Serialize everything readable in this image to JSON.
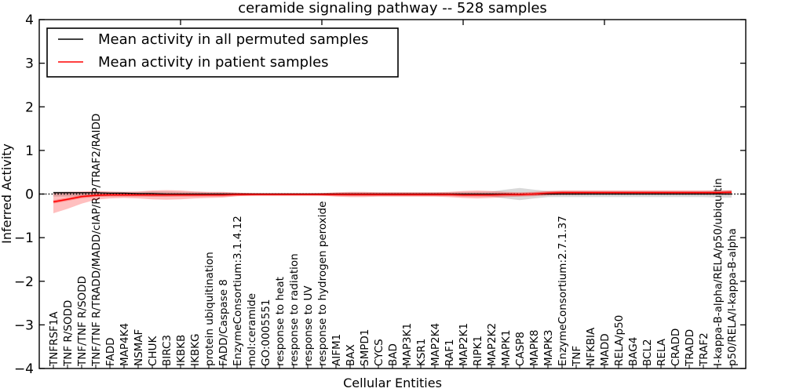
{
  "title": "ceramide signaling pathway -- 528 samples",
  "colors": {
    "permuted_line": "#000000",
    "patient_line": "#ff0000",
    "permuted_band": "#aaaaaa",
    "patient_band": "#ff0000",
    "zero_line": "#000000",
    "background": "#ffffff"
  },
  "chart_data": {
    "type": "line",
    "title": "ceramide signaling pathway -- 528 samples",
    "xlabel": "Cellular Entities",
    "ylabel": "Inferred Activity",
    "ylim": [
      -4,
      4
    ],
    "yticks": [
      -4,
      -3,
      -2,
      -1,
      0,
      1,
      2,
      3,
      4
    ],
    "top_xticks": [
      10,
      20,
      30,
      40
    ],
    "grid": false,
    "legend_position": "upper left",
    "legend": [
      {
        "label": "Mean activity in all permuted samples",
        "color": "#000000"
      },
      {
        "label": "Mean activity in patient samples",
        "color": "#ff0000"
      }
    ],
    "zero_line": {
      "y": 0,
      "style": "dotted",
      "color": "#000000"
    },
    "categories": [
      "TNFRSF1A",
      "TNF R/SODD",
      "TNF/TNF R/SODD",
      "TNF/TNF R/TRADD/MADD/cIAP/RIP/TRAF2/RAIDD",
      "FADD",
      "MAP4K4",
      "NSMAF",
      "CHUK",
      "BIRC3",
      "IKBKB",
      "IKBKG",
      "protein ubiquitination",
      "FADD/Caspase 8",
      "EnzymeConsortium:3.1.4.12",
      "mol:ceramide",
      "GO:0005551",
      "response to heat",
      "response to radiation",
      "response to UV",
      "response to hydrogen peroxide",
      "AIFM1",
      "BAX",
      "SMPD1",
      "CYCS",
      "BAD",
      "MAP3K1",
      "KSR1",
      "MAP2K4",
      "RAF1",
      "MAP2K1",
      "RIPK1",
      "MAP2K2",
      "MAPK1",
      "CASP8",
      "MAPK8",
      "MAPK3",
      "EnzymeConsortium:2.7.1.37",
      "TNF",
      "NFKBIA",
      "MADD",
      "RELA/p50",
      "BAG4",
      "BCL2",
      "RELA",
      "CRADD",
      "TRADD",
      "TRAF2",
      "I-kappa-B-alpha/RELA/p50/ubiquitin",
      "p50/RELA/I-kappa-B-alpha"
    ],
    "series": [
      {
        "name": "Mean activity in all permuted samples",
        "color": "#000000",
        "values": [
          0.03,
          0.03,
          0.03,
          0.03,
          0.02,
          0.02,
          0.01,
          0.01,
          0,
          0,
          0,
          0,
          0,
          0,
          0,
          0,
          0,
          0,
          0,
          0,
          0,
          0,
          0,
          0,
          0,
          0,
          0,
          0,
          0,
          0,
          0,
          0,
          0,
          -0.01,
          0,
          0,
          0,
          0,
          0,
          0,
          0,
          0,
          0,
          0,
          0,
          0,
          0,
          0,
          0
        ]
      },
      {
        "name": "Mean activity in patient samples",
        "color": "#ff0000",
        "values": [
          -0.18,
          -0.12,
          -0.06,
          -0.03,
          -0.02,
          -0.02,
          -0.02,
          -0.02,
          -0.02,
          -0.02,
          -0.02,
          -0.02,
          -0.02,
          -0.01,
          -0.01,
          -0.01,
          -0.01,
          -0.01,
          -0.01,
          -0.01,
          -0.01,
          -0.01,
          -0.01,
          -0.01,
          -0.01,
          -0.01,
          -0.01,
          -0.01,
          -0.01,
          -0.02,
          -0.02,
          -0.02,
          -0.01,
          -0.01,
          0,
          0.02,
          0.03,
          0.03,
          0.03,
          0.03,
          0.03,
          0.03,
          0.03,
          0.03,
          0.03,
          0.03,
          0.03,
          0.03,
          0.04
        ]
      }
    ],
    "bands": [
      {
        "name": "permuted-variance-band",
        "color": "#aaaaaa",
        "opacity": 0.45,
        "lo": [
          -0.06,
          -0.06,
          -0.05,
          -0.05,
          -0.05,
          -0.05,
          -0.05,
          -0.06,
          -0.06,
          -0.05,
          -0.05,
          -0.04,
          -0.04,
          -0.03,
          -0.02,
          -0.02,
          -0.02,
          -0.02,
          -0.02,
          -0.02,
          -0.03,
          -0.04,
          -0.04,
          -0.04,
          -0.04,
          -0.04,
          -0.04,
          -0.04,
          -0.04,
          -0.05,
          -0.05,
          -0.06,
          -0.1,
          -0.14,
          -0.1,
          -0.07,
          -0.07,
          -0.07,
          -0.07,
          -0.07,
          -0.07,
          -0.07,
          -0.07,
          -0.07,
          -0.07,
          -0.07,
          -0.07,
          -0.08,
          -0.08
        ],
        "hi": [
          0.06,
          0.06,
          0.05,
          0.05,
          0.05,
          0.05,
          0.05,
          0.06,
          0.06,
          0.05,
          0.05,
          0.04,
          0.04,
          0.03,
          0.02,
          0.02,
          0.02,
          0.02,
          0.02,
          0.02,
          0.03,
          0.04,
          0.04,
          0.04,
          0.04,
          0.04,
          0.04,
          0.04,
          0.04,
          0.05,
          0.05,
          0.06,
          0.1,
          0.14,
          0.1,
          0.07,
          0.07,
          0.07,
          0.07,
          0.07,
          0.07,
          0.07,
          0.07,
          0.07,
          0.07,
          0.07,
          0.07,
          0.08,
          0.08
        ]
      },
      {
        "name": "patient-variance-band",
        "color": "#ff0000",
        "opacity": 0.25,
        "lo": [
          -0.44,
          -0.34,
          -0.22,
          -0.13,
          -0.1,
          -0.09,
          -0.1,
          -0.12,
          -0.13,
          -0.12,
          -0.1,
          -0.09,
          -0.08,
          -0.05,
          -0.03,
          -0.02,
          -0.02,
          -0.02,
          -0.02,
          -0.03,
          -0.06,
          -0.07,
          -0.07,
          -0.06,
          -0.06,
          -0.06,
          -0.06,
          -0.06,
          -0.07,
          -0.09,
          -0.1,
          -0.09,
          -0.07,
          -0.06,
          -0.05,
          -0.03,
          -0.02,
          -0.02,
          -0.01,
          -0.01,
          -0.01,
          -0.01,
          -0.01,
          -0.01,
          -0.01,
          -0.01,
          -0.01,
          -0.01,
          -0.02
        ],
        "hi": [
          0.04,
          0.05,
          0.06,
          0.07,
          0.06,
          0.05,
          0.06,
          0.08,
          0.09,
          0.08,
          0.06,
          0.05,
          0.05,
          0.03,
          0.02,
          0.01,
          0.01,
          0.01,
          0.01,
          0.02,
          0.04,
          0.05,
          0.05,
          0.04,
          0.04,
          0.04,
          0.04,
          0.04,
          0.05,
          0.07,
          0.08,
          0.07,
          0.05,
          0.04,
          0.05,
          0.07,
          0.08,
          0.08,
          0.08,
          0.08,
          0.08,
          0.08,
          0.08,
          0.08,
          0.08,
          0.08,
          0.08,
          0.08,
          0.09
        ]
      }
    ]
  }
}
